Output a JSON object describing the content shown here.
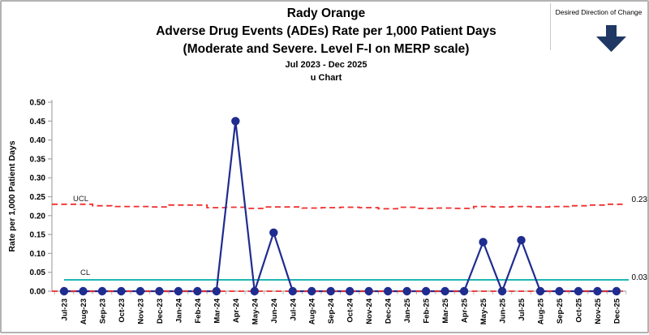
{
  "header": {
    "title_line1": "Rady Orange",
    "title_line2": "Adverse Drug Events (ADEs) Rate per 1,000 Patient Days",
    "title_line3": "(Moderate and Severe. Level F-I on MERP scale)",
    "subtitle_range": "Jul 2023 - Dec 2025",
    "subtitle_chart_type": "u Chart"
  },
  "desired_direction": {
    "label": "Desired Direction of Change",
    "direction": "down",
    "arrow_color": "#1F3864"
  },
  "chart_data": {
    "type": "line",
    "title": "Rady Orange - Adverse Drug Events (ADEs) Rate per 1,000 Patient Days (Moderate and Severe. Level F-I on MERP scale), Jul 2023 - Dec 2025, u Chart",
    "xlabel": "",
    "ylabel": "Rate per 1,000 Patient Days",
    "ylim": [
      0,
      0.5
    ],
    "ytick_step": 0.05,
    "yticks": [
      "0.00",
      "0.05",
      "0.10",
      "0.15",
      "0.20",
      "0.25",
      "0.30",
      "0.35",
      "0.40",
      "0.45",
      "0.50"
    ],
    "grid": false,
    "legend_position": "none",
    "categories": [
      "Jul-23",
      "Aug-23",
      "Sep-23",
      "Oct-23",
      "Nov-23",
      "Dec-23",
      "Jan-24",
      "Feb-24",
      "Mar-24",
      "Apr-24",
      "May-24",
      "Jun-24",
      "Jul-24",
      "Aug-24",
      "Sep-24",
      "Oct-24",
      "Nov-24",
      "Dec-24",
      "Jan-25",
      "Feb-25",
      "Mar-25",
      "Apr-25",
      "May-25",
      "Jun-25",
      "Jul-25",
      "Aug-25",
      "Sep-25",
      "Oct-25",
      "Nov-25",
      "Dec-25"
    ],
    "series": [
      {
        "name": "ADE rate per 1,000 patient days",
        "style": "line-markers",
        "color": "#1F2C90",
        "values": [
          0,
          0,
          0,
          0,
          0,
          0,
          0,
          0,
          0,
          0.45,
          0,
          0.155,
          0,
          0,
          0,
          0,
          0,
          0,
          0,
          0,
          0,
          0,
          0.13,
          0,
          0.135,
          0,
          0,
          0,
          0,
          0
        ]
      },
      {
        "name": "UCL",
        "style": "step-dashed",
        "color": "#F12D2D",
        "values": [
          0.23,
          0.23,
          0.226,
          0.224,
          0.224,
          0.223,
          0.228,
          0.228,
          0.221,
          0.222,
          0.219,
          0.223,
          0.223,
          0.22,
          0.221,
          0.222,
          0.221,
          0.218,
          0.222,
          0.219,
          0.22,
          0.219,
          0.224,
          0.223,
          0.224,
          0.223,
          0.224,
          0.226,
          0.228,
          0.23
        ]
      },
      {
        "name": "CL",
        "style": "solid",
        "color": "#00AEA9",
        "value": 0.03
      },
      {
        "name": "LCL",
        "style": "dashed",
        "color": "#F12D2D",
        "value": 0.0
      }
    ],
    "annotations": {
      "ucl_label": "UCL",
      "cl_label": "CL",
      "ucl_end_value": "0.23",
      "cl_end_value": "0.03"
    }
  }
}
